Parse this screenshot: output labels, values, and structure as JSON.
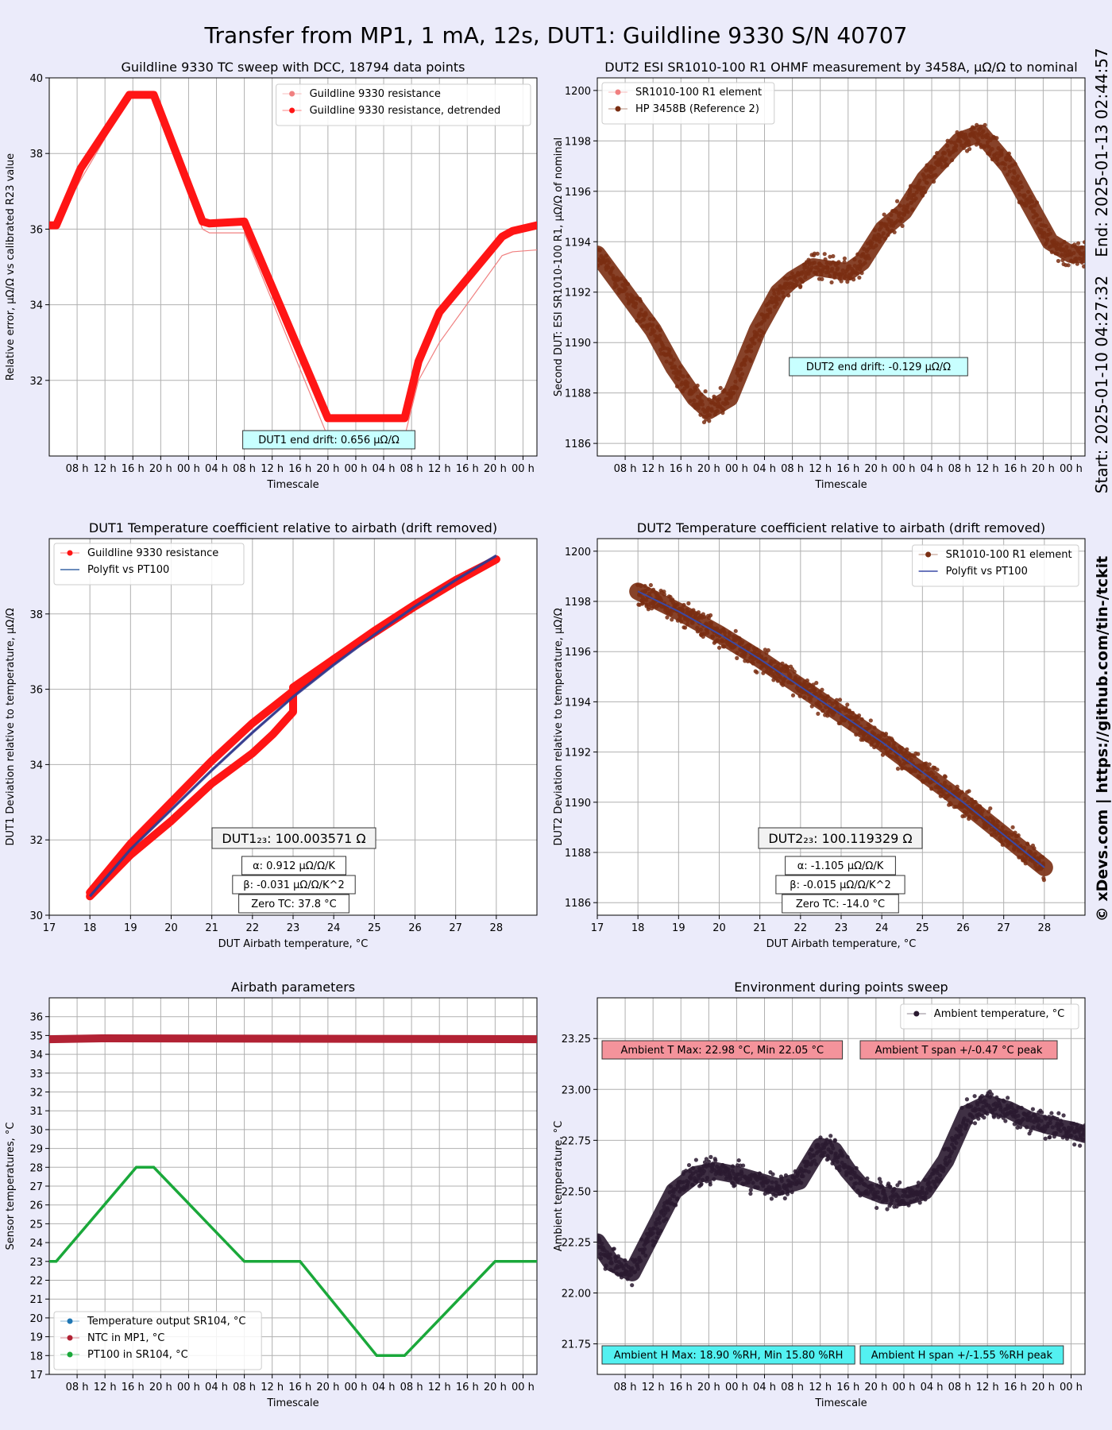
{
  "page": {
    "title": "Transfer from MP1, 1 mA, 12s, DUT1: Guildline 9330 S/N 40707",
    "side_end": "End: 2025-01-13 02:44:57",
    "side_start": "Start: 2025-01-10 04:27:32",
    "side_credit": "© xDevs.com  |  https://github.com/tin-/tckit"
  },
  "chart_data": [
    {
      "id": "p1",
      "type": "line",
      "title": "Guildline 9330 TC sweep with DCC, 18794 data points",
      "xlabel": "Timescale",
      "ylabel": "Relative error, µΩ/Ω vs calibrated R23 value",
      "ylim": [
        30,
        40
      ],
      "yticks": [
        32,
        34,
        36,
        38,
        40
      ],
      "xlim": [
        0,
        70
      ],
      "xticks": [
        {
          "x": 4,
          "label": "08 h"
        },
        {
          "x": 8,
          "label": "12 h"
        },
        {
          "x": 12,
          "label": "16 h"
        },
        {
          "x": 16,
          "label": "20 h"
        },
        {
          "x": 20,
          "label": "00 h"
        },
        {
          "x": 24,
          "label": "04 h"
        },
        {
          "x": 28,
          "label": "08 h"
        },
        {
          "x": 32,
          "label": "12 h"
        },
        {
          "x": 36,
          "label": "16 h"
        },
        {
          "x": 40,
          "label": "20 h"
        },
        {
          "x": 44,
          "label": "00 h"
        },
        {
          "x": 48,
          "label": "04 h"
        },
        {
          "x": 52,
          "label": "08 h"
        },
        {
          "x": 56,
          "label": "12 h"
        },
        {
          "x": 60,
          "label": "16 h"
        },
        {
          "x": 64,
          "label": "20 h"
        },
        {
          "x": 68,
          "label": "00 h"
        }
      ],
      "grid": true,
      "legend_position": "top-right",
      "series": [
        {
          "name": "Guildline 9330 resistance",
          "color": "#f08080",
          "style": "thin",
          "x": [
            0,
            1,
            4.5,
            11.5,
            12.5,
            15,
            22,
            23,
            28,
            40,
            51,
            53,
            56,
            65,
            66.5,
            70
          ],
          "y": [
            36.1,
            36.1,
            37.3,
            39.5,
            39.5,
            39.5,
            36.0,
            35.9,
            35.9,
            30.5,
            30.5,
            32.0,
            33.0,
            35.3,
            35.4,
            35.45
          ]
        },
        {
          "name": "Guildline 9330 resistance, detrended",
          "color": "#ff1515",
          "style": "thick",
          "x": [
            0,
            1,
            4.5,
            11.5,
            12.5,
            15,
            22,
            23,
            28,
            40,
            51,
            53,
            56,
            65,
            66.5,
            70
          ],
          "y": [
            36.1,
            36.1,
            37.6,
            39.55,
            39.55,
            39.55,
            36.2,
            36.15,
            36.2,
            31.0,
            31.0,
            32.5,
            33.8,
            35.8,
            35.95,
            36.1
          ]
        }
      ],
      "annotations": [
        {
          "text": "DUT1 end drift: 0.656 µΩ/Ω"
        }
      ]
    },
    {
      "id": "p2",
      "type": "scatter",
      "title": "DUT2 ESI SR1010-100 R1 OHMF measurement by 3458A, µΩ/Ω to nominal",
      "xlabel": "Timescale",
      "ylabel": "Second DUT: ESI SR1010-100 R1, µΩ/Ω of nominal",
      "ylim": [
        1185.5,
        1200.5
      ],
      "yticks": [
        1186,
        1188,
        1190,
        1192,
        1194,
        1196,
        1198,
        1200
      ],
      "xlim": [
        0,
        70
      ],
      "xticks": [
        {
          "x": 4,
          "label": "08 h"
        },
        {
          "x": 8,
          "label": "12 h"
        },
        {
          "x": 12,
          "label": "16 h"
        },
        {
          "x": 16,
          "label": "20 h"
        },
        {
          "x": 20,
          "label": "00 h"
        },
        {
          "x": 24,
          "label": "04 h"
        },
        {
          "x": 28,
          "label": "08 h"
        },
        {
          "x": 32,
          "label": "12 h"
        },
        {
          "x": 36,
          "label": "16 h"
        },
        {
          "x": 40,
          "label": "20 h"
        },
        {
          "x": 44,
          "label": "00 h"
        },
        {
          "x": 48,
          "label": "04 h"
        },
        {
          "x": 52,
          "label": "08 h"
        },
        {
          "x": 56,
          "label": "12 h"
        },
        {
          "x": 60,
          "label": "16 h"
        },
        {
          "x": 64,
          "label": "20 h"
        },
        {
          "x": 68,
          "label": "00 h"
        }
      ],
      "grid": true,
      "legend_position": "top-left",
      "series": [
        {
          "name": "SR1010-100 R1 element",
          "color": "#f08080",
          "style": "thin",
          "x": [],
          "y": []
        },
        {
          "name": "HP 3458B (Reference 2)",
          "color": "#7a2e12",
          "style": "band",
          "x": [
            0,
            4,
            8,
            11,
            14,
            16,
            19,
            23,
            26,
            28,
            31,
            36,
            38,
            41,
            44,
            47,
            52,
            55,
            59,
            62,
            65,
            68,
            70
          ],
          "y": [
            1193.5,
            1192.0,
            1190.5,
            1189.0,
            1187.8,
            1187.3,
            1187.8,
            1190.5,
            1192.0,
            1192.5,
            1193.0,
            1192.8,
            1193.2,
            1194.5,
            1195.2,
            1196.5,
            1198.0,
            1198.3,
            1197.0,
            1195.5,
            1194.0,
            1193.5,
            1193.5
          ]
        }
      ],
      "annotations": [
        {
          "text": "DUT2 end drift: -0.129 µΩ/Ω"
        }
      ]
    },
    {
      "id": "p3",
      "type": "scatter",
      "title": "DUT1 Temperature coefficient relative to airbath (drift removed)",
      "xlabel": "DUT Airbath temperature, °C",
      "ylabel": "DUT1 Deviation relative to temperature, µΩ/Ω",
      "ylim": [
        30,
        40
      ],
      "yticks": [
        30,
        32,
        34,
        36,
        38
      ],
      "xlim": [
        17,
        29
      ],
      "xticks": [
        {
          "x": 17,
          "label": "17"
        },
        {
          "x": 18,
          "label": "18"
        },
        {
          "x": 19,
          "label": "19"
        },
        {
          "x": 20,
          "label": "20"
        },
        {
          "x": 21,
          "label": "21"
        },
        {
          "x": 22,
          "label": "22"
        },
        {
          "x": 23,
          "label": "23"
        },
        {
          "x": 24,
          "label": "24"
        },
        {
          "x": 25,
          "label": "25"
        },
        {
          "x": 26,
          "label": "26"
        },
        {
          "x": 27,
          "label": "27"
        },
        {
          "x": 28,
          "label": "28"
        }
      ],
      "grid": true,
      "legend_position": "top-left",
      "series": [
        {
          "name": "Guildline 9330 resistance",
          "color": "#ff1515",
          "style": "thick",
          "x": [
            18,
            19,
            20,
            21,
            22,
            22.5,
            23,
            23,
            24,
            25,
            26,
            27,
            28
          ],
          "y": [
            30.5,
            31.6,
            32.5,
            33.5,
            34.3,
            34.8,
            35.4,
            36.05,
            36.8,
            37.5,
            38.2,
            38.85,
            39.45
          ]
        },
        {
          "name": "",
          "color": "#ff1515",
          "style": "thick",
          "x": [
            18,
            19,
            20,
            21,
            22,
            23,
            24,
            25,
            26,
            27,
            28
          ],
          "y": [
            30.6,
            31.9,
            33.0,
            34.1,
            35.1,
            35.95,
            36.8,
            37.55,
            38.25,
            38.9,
            39.45
          ]
        },
        {
          "name": "Polyfit vs PT100",
          "color": "#3a66a6",
          "style": "line",
          "x": [
            18,
            19,
            20,
            21,
            22,
            23,
            24,
            25,
            26,
            27,
            28
          ],
          "y": [
            30.5,
            31.75,
            32.8,
            33.85,
            34.85,
            35.8,
            36.65,
            37.45,
            38.2,
            38.9,
            39.55
          ]
        }
      ],
      "annotations": [
        {
          "text": "DUT1₂₃: 100.003571 Ω"
        },
        {
          "text": "α: 0.912 µΩ/Ω/K"
        },
        {
          "text": "β: -0.031 µΩ/Ω/K^2"
        },
        {
          "text": "Zero TC: 37.8 °C"
        }
      ]
    },
    {
      "id": "p4",
      "type": "scatter",
      "title": "DUT2 Temperature coefficient relative to airbath (drift removed)",
      "xlabel": "DUT Airbath temperature, °C",
      "ylabel": "DUT2 Deviation relative to temperature, µΩ/Ω",
      "ylim": [
        1185.5,
        1200.5
      ],
      "yticks": [
        1186,
        1188,
        1190,
        1192,
        1194,
        1196,
        1198,
        1200
      ],
      "xlim": [
        17,
        29
      ],
      "xticks": [
        {
          "x": 17,
          "label": "17"
        },
        {
          "x": 18,
          "label": "18"
        },
        {
          "x": 19,
          "label": "19"
        },
        {
          "x": 20,
          "label": "20"
        },
        {
          "x": 21,
          "label": "21"
        },
        {
          "x": 22,
          "label": "22"
        },
        {
          "x": 23,
          "label": "23"
        },
        {
          "x": 24,
          "label": "24"
        },
        {
          "x": 25,
          "label": "25"
        },
        {
          "x": 26,
          "label": "26"
        },
        {
          "x": 27,
          "label": "27"
        },
        {
          "x": 28,
          "label": "28"
        }
      ],
      "grid": true,
      "legend_position": "top-right",
      "series": [
        {
          "name": "SR1010-100 R1 element",
          "color": "#7a2e12",
          "style": "band",
          "x": [
            18,
            19,
            20,
            21,
            22,
            23,
            24,
            25,
            26,
            27,
            28
          ],
          "y": [
            1198.4,
            1197.6,
            1196.7,
            1195.7,
            1194.6,
            1193.5,
            1192.4,
            1191.2,
            1190.0,
            1188.7,
            1187.4
          ]
        },
        {
          "name": "Polyfit vs PT100",
          "color": "#3a4aa6",
          "style": "line",
          "x": [
            18,
            19,
            20,
            21,
            22,
            23,
            24,
            25,
            26,
            27,
            28
          ],
          "y": [
            1198.4,
            1197.6,
            1196.7,
            1195.7,
            1194.6,
            1193.5,
            1192.4,
            1191.2,
            1190.0,
            1188.7,
            1187.4
          ]
        }
      ],
      "annotations": [
        {
          "text": "DUT2₂₃: 100.119329 Ω"
        },
        {
          "text": "α: -1.105 µΩ/Ω/K"
        },
        {
          "text": "β:  -0.015 µΩ/Ω/K^2"
        },
        {
          "text": "Zero TC: -14.0 °C"
        }
      ]
    },
    {
      "id": "p5",
      "type": "line",
      "title": "Airbath parameters",
      "xlabel": "Timescale",
      "ylabel": "Sensor temperatures, °C",
      "ylim": [
        17,
        37
      ],
      "yticks": [
        17,
        18,
        19,
        20,
        21,
        22,
        23,
        24,
        25,
        26,
        27,
        28,
        29,
        30,
        31,
        32,
        33,
        34,
        35,
        36
      ],
      "xlim": [
        0,
        70
      ],
      "xticks": [
        {
          "x": 4,
          "label": "08 h"
        },
        {
          "x": 8,
          "label": "12 h"
        },
        {
          "x": 12,
          "label": "16 h"
        },
        {
          "x": 16,
          "label": "20 h"
        },
        {
          "x": 20,
          "label": "00 h"
        },
        {
          "x": 24,
          "label": "04 h"
        },
        {
          "x": 28,
          "label": "08 h"
        },
        {
          "x": 32,
          "label": "12 h"
        },
        {
          "x": 36,
          "label": "16 h"
        },
        {
          "x": 40,
          "label": "20 h"
        },
        {
          "x": 44,
          "label": "00 h"
        },
        {
          "x": 48,
          "label": "04 h"
        },
        {
          "x": 52,
          "label": "08 h"
        },
        {
          "x": 56,
          "label": "12 h"
        },
        {
          "x": 60,
          "label": "16 h"
        },
        {
          "x": 64,
          "label": "20 h"
        },
        {
          "x": 68,
          "label": "00 h"
        }
      ],
      "grid": true,
      "legend_position": "bottom-left",
      "series": [
        {
          "name": "Temperature output SR104, °C",
          "color": "#1f77b4",
          "style": "line",
          "x": [
            0,
            1,
            12.5,
            15,
            28,
            36,
            47,
            51,
            64,
            70
          ],
          "y": [
            23,
            23,
            28,
            28,
            23,
            23,
            18,
            18,
            23,
            23
          ]
        },
        {
          "name": "NTC in MP1, °C",
          "color": "#b22234",
          "style": "thick",
          "x": [
            0,
            8,
            70
          ],
          "y": [
            34.8,
            34.85,
            34.8
          ]
        },
        {
          "name": "PT100 in SR104, °C",
          "color": "#1aa83a",
          "style": "line",
          "x": [
            0,
            1,
            12.5,
            15,
            28,
            36,
            47,
            51,
            64,
            70
          ],
          "y": [
            23,
            23,
            28,
            28,
            23,
            23,
            18,
            18,
            23,
            23
          ]
        }
      ]
    },
    {
      "id": "p6",
      "type": "scatter",
      "title": "Environment during points sweep",
      "xlabel": "Timescale",
      "ylabel": "Ambient temperature, °C",
      "ylim": [
        21.6,
        23.45
      ],
      "yticks": [
        21.75,
        22.0,
        22.25,
        22.5,
        22.75,
        23.0,
        23.25
      ],
      "ytick_labels": [
        "21.75",
        "22.00",
        "22.25",
        "22.50",
        "22.75",
        "23.00",
        "23.25"
      ],
      "xlim": [
        0,
        70
      ],
      "xticks": [
        {
          "x": 4,
          "label": "08 h"
        },
        {
          "x": 8,
          "label": "12 h"
        },
        {
          "x": 12,
          "label": "16 h"
        },
        {
          "x": 16,
          "label": "20 h"
        },
        {
          "x": 20,
          "label": "00 h"
        },
        {
          "x": 24,
          "label": "04 h"
        },
        {
          "x": 28,
          "label": "08 h"
        },
        {
          "x": 32,
          "label": "12 h"
        },
        {
          "x": 36,
          "label": "16 h"
        },
        {
          "x": 40,
          "label": "20 h"
        },
        {
          "x": 44,
          "label": "00 h"
        },
        {
          "x": 48,
          "label": "04 h"
        },
        {
          "x": 52,
          "label": "08 h"
        },
        {
          "x": 56,
          "label": "12 h"
        },
        {
          "x": 60,
          "label": "16 h"
        },
        {
          "x": 64,
          "label": "20 h"
        },
        {
          "x": 68,
          "label": "00 h"
        }
      ],
      "grid": true,
      "legend_position": "top-right",
      "series": [
        {
          "name": "Ambient temperature, °C",
          "color": "#2a1a30",
          "style": "band",
          "x": [
            0,
            2,
            5,
            8,
            11,
            14,
            17,
            20,
            23,
            26,
            29,
            32,
            34,
            36,
            38,
            41,
            44,
            47,
            50,
            53,
            56,
            59,
            62,
            65,
            68,
            70
          ],
          "y": [
            22.25,
            22.15,
            22.1,
            22.3,
            22.5,
            22.58,
            22.6,
            22.58,
            22.55,
            22.52,
            22.55,
            22.72,
            22.7,
            22.6,
            22.52,
            22.48,
            22.47,
            22.5,
            22.65,
            22.88,
            22.93,
            22.9,
            22.85,
            22.82,
            22.8,
            22.78
          ]
        }
      ],
      "annotations": [
        {
          "text": "Ambient T Max: 22.98 °C, Min 22.05 °C"
        },
        {
          "text": "Ambient T span +/-0.47 °C peak"
        },
        {
          "text": "Ambient H Max: 18.90 %RH, Min 15.80 %RH"
        },
        {
          "text": "Ambient H span +/-1.55 %RH peak"
        }
      ]
    }
  ]
}
